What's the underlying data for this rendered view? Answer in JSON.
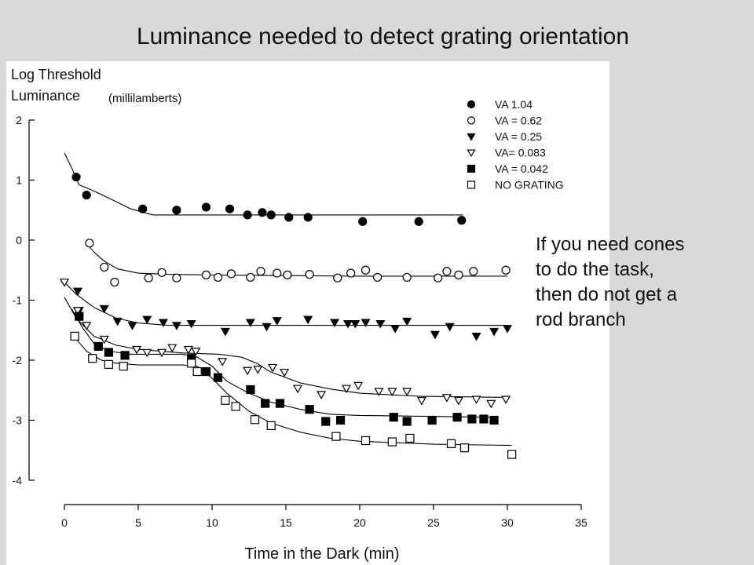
{
  "slide": {
    "title": "Luminance needed to detect grating orientation",
    "note_lines": [
      "If you need cones",
      "to do the task,",
      "then do not get a",
      "rod branch"
    ]
  },
  "chart_data": {
    "type": "scatter",
    "ylabel_line1": "Log Threshold",
    "ylabel_line2": "Luminance",
    "yunit": "(millilamberts)",
    "xlabel": "Time in the Dark (min)",
    "xlim": [
      0,
      35
    ],
    "ylim": [
      -4,
      2
    ],
    "xticks": [
      0,
      5,
      10,
      15,
      20,
      25,
      30,
      35
    ],
    "yticks": [
      2,
      1,
      0,
      -1,
      -2,
      -3,
      -4
    ],
    "grid": false,
    "legend_position": "top-right",
    "colors": {
      "ink": "#000000",
      "background": "#ffffff"
    },
    "series": [
      {
        "name": "VA 1.04",
        "marker": "filled-circle",
        "points": [
          [
            0.8,
            1.05
          ],
          [
            1.5,
            0.75
          ],
          [
            5.3,
            0.52
          ],
          [
            7.6,
            0.5
          ],
          [
            9.6,
            0.55
          ],
          [
            11.2,
            0.52
          ],
          [
            12.4,
            0.42
          ],
          [
            13.4,
            0.46
          ],
          [
            14,
            0.42
          ],
          [
            15.2,
            0.38
          ],
          [
            16.5,
            0.38
          ],
          [
            20.2,
            0.31
          ],
          [
            24,
            0.31
          ],
          [
            26.9,
            0.33
          ]
        ],
        "curve": [
          [
            0,
            1.45
          ],
          [
            0.5,
            1.2
          ],
          [
            1,
            0.92
          ],
          [
            1.8,
            0.84
          ],
          [
            3,
            0.7
          ],
          [
            4.5,
            0.52
          ],
          [
            6,
            0.42
          ],
          [
            8,
            0.42
          ],
          [
            27,
            0.42
          ]
        ]
      },
      {
        "name": "VA = 0.62",
        "marker": "open-circle",
        "points": [
          [
            1.7,
            -0.05
          ],
          [
            2.7,
            -0.45
          ],
          [
            3.4,
            -0.7
          ],
          [
            5.7,
            -0.63
          ],
          [
            6.6,
            -0.54
          ],
          [
            7.6,
            -0.63
          ],
          [
            9.6,
            -0.58
          ],
          [
            10.4,
            -0.62
          ],
          [
            11.3,
            -0.56
          ],
          [
            12.6,
            -0.62
          ],
          [
            13.3,
            -0.52
          ],
          [
            14.4,
            -0.55
          ],
          [
            15.1,
            -0.58
          ],
          [
            16.6,
            -0.57
          ],
          [
            18.5,
            -0.63
          ],
          [
            19.4,
            -0.55
          ],
          [
            20.4,
            -0.5
          ],
          [
            21.2,
            -0.62
          ],
          [
            23.2,
            -0.62
          ],
          [
            25.3,
            -0.63
          ],
          [
            25.9,
            -0.52
          ],
          [
            26.7,
            -0.58
          ],
          [
            27.7,
            -0.52
          ],
          [
            29.9,
            -0.5
          ]
        ],
        "curve": [
          [
            1.5,
            -0.05
          ],
          [
            2,
            -0.2
          ],
          [
            2.7,
            -0.35
          ],
          [
            3.6,
            -0.48
          ],
          [
            5,
            -0.55
          ],
          [
            7,
            -0.57
          ],
          [
            10,
            -0.58
          ],
          [
            20,
            -0.6
          ],
          [
            30,
            -0.6
          ]
        ]
      },
      {
        "name": "VA = 0.25",
        "marker": "filled-triangle-down",
        "points": [
          [
            0.9,
            -0.85
          ],
          [
            1,
            -1.17
          ],
          [
            2.7,
            -1.14
          ],
          [
            3.6,
            -1.35
          ],
          [
            4.6,
            -1.42
          ],
          [
            5.6,
            -1.32
          ],
          [
            6.7,
            -1.37
          ],
          [
            7.6,
            -1.42
          ],
          [
            8.6,
            -1.39
          ],
          [
            10.9,
            -1.52
          ],
          [
            12.6,
            -1.37
          ],
          [
            13.7,
            -1.44
          ],
          [
            14.4,
            -1.34
          ],
          [
            16.5,
            -1.32
          ],
          [
            18.3,
            -1.37
          ],
          [
            19.2,
            -1.39
          ],
          [
            19.7,
            -1.39
          ],
          [
            20.4,
            -1.37
          ],
          [
            21.4,
            -1.39
          ],
          [
            22.4,
            -1.47
          ],
          [
            23.2,
            -1.35
          ],
          [
            25.1,
            -1.57
          ],
          [
            26.1,
            -1.44
          ],
          [
            27.9,
            -1.6
          ],
          [
            29.1,
            -1.52
          ],
          [
            30,
            -1.47
          ]
        ],
        "curve": [
          [
            0,
            -0.7
          ],
          [
            0.8,
            -0.9
          ],
          [
            2,
            -1.12
          ],
          [
            3.5,
            -1.3
          ],
          [
            5,
            -1.38
          ],
          [
            7,
            -1.42
          ],
          [
            10,
            -1.42
          ],
          [
            30,
            -1.42
          ]
        ]
      },
      {
        "name": "VA= 0.083",
        "marker": "open-triangle-down",
        "points": [
          [
            0,
            -0.7
          ],
          [
            0.9,
            -1.17
          ],
          [
            1.5,
            -1.42
          ],
          [
            2.7,
            -1.65
          ],
          [
            4.9,
            -1.82
          ],
          [
            5.6,
            -1.87
          ],
          [
            6.6,
            -1.87
          ],
          [
            7.3,
            -1.79
          ],
          [
            8.4,
            -1.82
          ],
          [
            8.9,
            -1.85
          ],
          [
            10.7,
            -2.02
          ],
          [
            12.4,
            -2.17
          ],
          [
            13.1,
            -2.15
          ],
          [
            14.1,
            -2.12
          ],
          [
            14.9,
            -2.2
          ],
          [
            15.8,
            -2.47
          ],
          [
            17.4,
            -2.57
          ],
          [
            19.1,
            -2.47
          ],
          [
            19.9,
            -2.42
          ],
          [
            21.3,
            -2.52
          ],
          [
            22.2,
            -2.52
          ],
          [
            23.2,
            -2.52
          ],
          [
            24.2,
            -2.67
          ],
          [
            25.9,
            -2.62
          ],
          [
            26.7,
            -2.67
          ],
          [
            27.9,
            -2.65
          ],
          [
            28.9,
            -2.72
          ],
          [
            29.9,
            -2.65
          ]
        ],
        "curve": [
          [
            0,
            -0.95
          ],
          [
            0.8,
            -1.3
          ],
          [
            2,
            -1.6
          ],
          [
            3.5,
            -1.75
          ],
          [
            5,
            -1.82
          ],
          [
            8,
            -1.88
          ],
          [
            10.5,
            -1.9
          ],
          [
            12,
            -1.95
          ],
          [
            13,
            -2.05
          ],
          [
            14,
            -2.2
          ],
          [
            16,
            -2.38
          ],
          [
            18,
            -2.48
          ],
          [
            20,
            -2.55
          ],
          [
            24,
            -2.6
          ],
          [
            30,
            -2.62
          ]
        ]
      },
      {
        "name": "VA = 0.042",
        "marker": "filled-square",
        "points": [
          [
            1,
            -1.27
          ],
          [
            2.3,
            -1.77
          ],
          [
            3,
            -1.87
          ],
          [
            4.1,
            -1.92
          ],
          [
            8.6,
            -1.97
          ],
          [
            9.6,
            -2.19
          ],
          [
            10.4,
            -2.29
          ],
          [
            12.6,
            -2.49
          ],
          [
            13.6,
            -2.72
          ],
          [
            14.6,
            -2.72
          ],
          [
            16.6,
            -2.82
          ],
          [
            17.7,
            -3.02
          ],
          [
            18.7,
            -3
          ],
          [
            22.3,
            -2.95
          ],
          [
            23.2,
            -3.02
          ],
          [
            24.9,
            -3
          ],
          [
            26.6,
            -2.95
          ],
          [
            27.6,
            -2.98
          ],
          [
            28.4,
            -2.98
          ],
          [
            29.1,
            -3
          ]
        ],
        "curve": [
          [
            0.5,
            -1.15
          ],
          [
            1.2,
            -1.45
          ],
          [
            2,
            -1.72
          ],
          [
            3,
            -1.85
          ],
          [
            4.5,
            -1.9
          ],
          [
            8,
            -1.9
          ],
          [
            9,
            -1.95
          ],
          [
            10,
            -2.1
          ],
          [
            11,
            -2.35
          ],
          [
            12.5,
            -2.55
          ],
          [
            14,
            -2.7
          ],
          [
            16,
            -2.82
          ],
          [
            18,
            -2.9
          ],
          [
            20,
            -2.92
          ],
          [
            29,
            -2.95
          ]
        ]
      },
      {
        "name": "NO GRATING",
        "marker": "open-square",
        "points": [
          [
            0.7,
            -1.6
          ],
          [
            1.9,
            -1.97
          ],
          [
            3,
            -2.07
          ],
          [
            4,
            -2.1
          ],
          [
            8.6,
            -2.05
          ],
          [
            9,
            -2.19
          ],
          [
            10.9,
            -2.67
          ],
          [
            11.6,
            -2.77
          ],
          [
            12.9,
            -2.99
          ],
          [
            14,
            -3.09
          ],
          [
            18.4,
            -3.27
          ],
          [
            20.4,
            -3.34
          ],
          [
            22.2,
            -3.36
          ],
          [
            23.4,
            -3.3
          ],
          [
            26.2,
            -3.39
          ],
          [
            27.1,
            -3.46
          ],
          [
            30.3,
            -3.57
          ]
        ],
        "curve": [
          [
            0.8,
            -1.65
          ],
          [
            1.5,
            -1.85
          ],
          [
            2.5,
            -2
          ],
          [
            3.5,
            -2.05
          ],
          [
            5,
            -2.08
          ],
          [
            8,
            -2.08
          ],
          [
            9,
            -2.1
          ],
          [
            10,
            -2.3
          ],
          [
            11,
            -2.55
          ],
          [
            12.5,
            -2.85
          ],
          [
            14,
            -3.05
          ],
          [
            16,
            -3.2
          ],
          [
            18,
            -3.3
          ],
          [
            20,
            -3.35
          ],
          [
            25,
            -3.4
          ],
          [
            30.3,
            -3.42
          ]
        ]
      }
    ]
  }
}
